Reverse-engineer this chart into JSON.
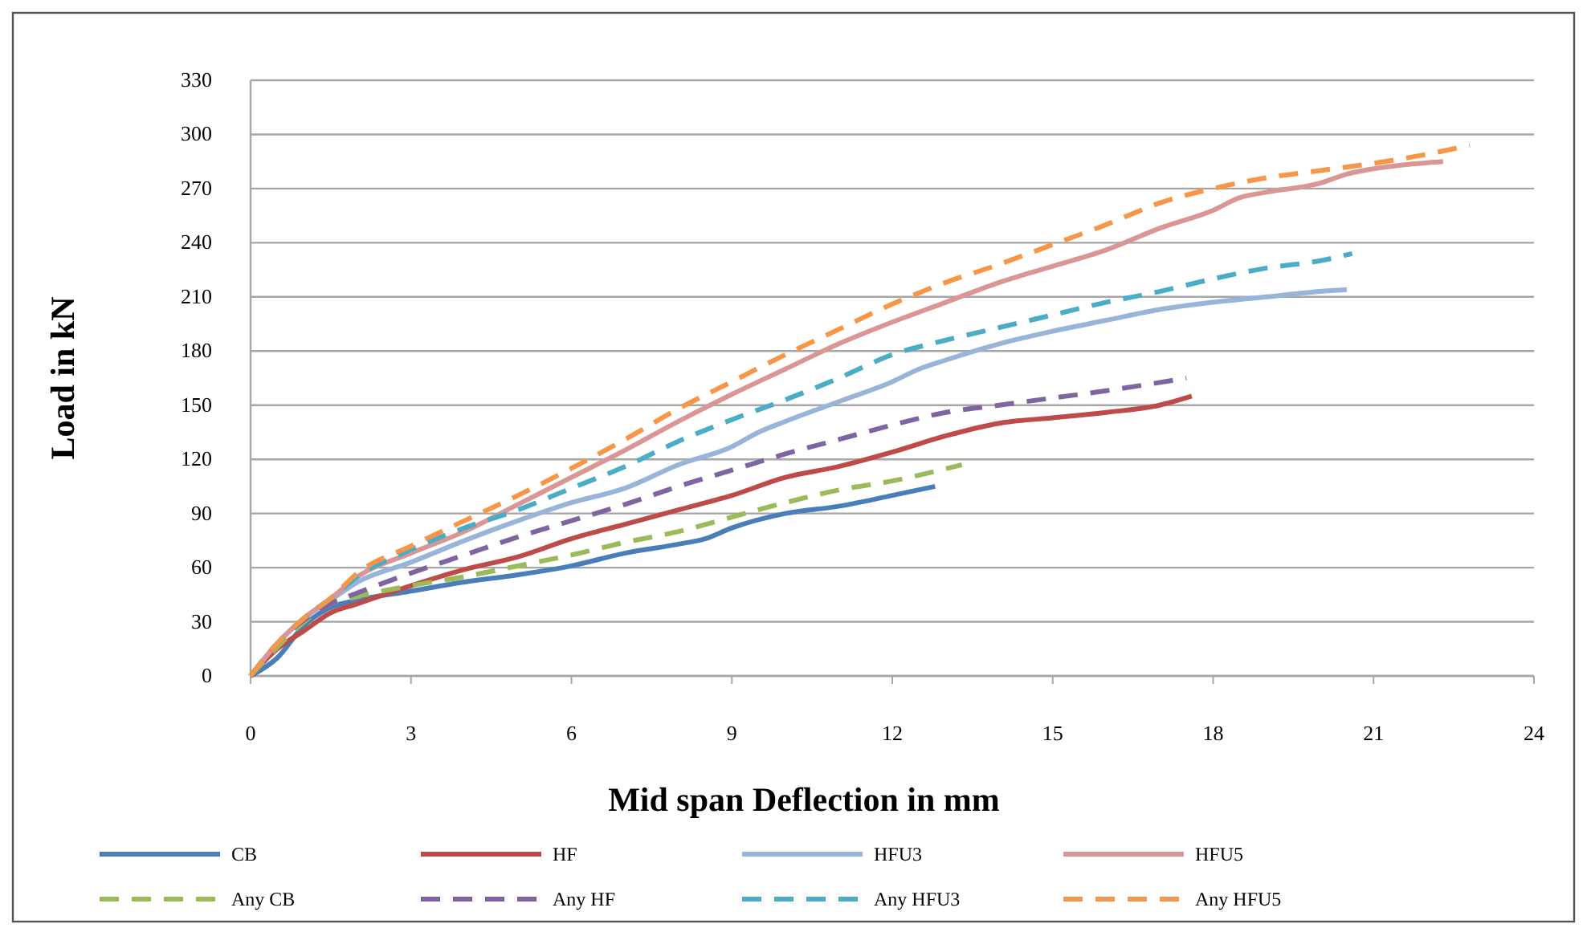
{
  "chart_data": {
    "type": "line",
    "xlabel": "Mid span Deflection in mm",
    "ylabel": "Load in kN",
    "xlim": [
      0,
      24
    ],
    "xticks": [
      0,
      3,
      6,
      9,
      12,
      15,
      18,
      21,
      24
    ],
    "ylim": [
      0,
      330
    ],
    "yticks": [
      0,
      30,
      60,
      90,
      120,
      150,
      180,
      210,
      240,
      270,
      300,
      330
    ],
    "grid": "y",
    "legend": "bottom",
    "series": [
      {
        "name": "CB",
        "color": "#4a7ebb",
        "line_style": "solid",
        "x": [
          0,
          0.5,
          1,
          1.5,
          2,
          3,
          4,
          5,
          6,
          7,
          8,
          8.5,
          9,
          10,
          11,
          12,
          12.8
        ],
        "values": [
          0,
          10,
          28,
          38,
          42,
          47,
          52,
          56,
          61,
          68,
          73,
          76,
          82,
          90,
          94,
          100,
          105
        ]
      },
      {
        "name": "HF",
        "color": "#be4b48",
        "line_style": "solid",
        "x": [
          0,
          0.5,
          1,
          1.5,
          2,
          3,
          4,
          5,
          6,
          7,
          8,
          9,
          10,
          11,
          12,
          13,
          14,
          15,
          16,
          17,
          17.6
        ],
        "values": [
          0,
          15,
          25,
          35,
          40,
          50,
          59,
          66,
          76,
          84,
          92,
          100,
          110,
          116,
          124,
          133,
          140,
          143,
          146,
          150,
          155
        ]
      },
      {
        "name": "HFU3",
        "color": "#98b4d9",
        "line_style": "solid",
        "x": [
          0,
          0.5,
          1,
          1.5,
          2,
          3,
          4,
          5,
          6,
          7,
          8,
          9,
          9.5,
          10,
          11,
          12,
          12.5,
          13,
          14,
          15,
          16,
          17,
          18,
          19,
          20,
          20.5
        ],
        "values": [
          0,
          18,
          32,
          42,
          52,
          63,
          75,
          86,
          96,
          104,
          117,
          127,
          135,
          141,
          152,
          163,
          170,
          175,
          184,
          191,
          197,
          203,
          207,
          210,
          213,
          214
        ]
      },
      {
        "name": "HFU5",
        "color": "#d99694",
        "line_style": "solid",
        "x": [
          0,
          0.5,
          1,
          1.5,
          2,
          3,
          4,
          5,
          6,
          7,
          8,
          9,
          10,
          11,
          12,
          13,
          14,
          15,
          16,
          17,
          18,
          18.5,
          19,
          20,
          20.5,
          21,
          22.3
        ],
        "values": [
          0,
          18,
          32,
          43,
          55,
          68,
          80,
          95,
          110,
          125,
          141,
          156,
          170,
          184,
          196,
          207,
          218,
          227,
          236,
          248,
          258,
          265,
          268,
          273,
          278,
          281,
          285
        ]
      },
      {
        "name": "Any CB",
        "color": "#9bbb59",
        "line_style": "dashed",
        "x": [
          0,
          0.5,
          1,
          1.5,
          2,
          3,
          4,
          5,
          6,
          7,
          8,
          9,
          10,
          11,
          12,
          13.3
        ],
        "values": [
          0,
          16,
          30,
          40,
          44,
          50,
          55,
          61,
          67,
          74,
          80,
          88,
          96,
          103,
          108,
          117
        ]
      },
      {
        "name": "Any HF",
        "color": "#8064a2",
        "line_style": "dashed",
        "x": [
          0,
          0.5,
          1,
          1.5,
          2,
          3,
          4,
          5,
          6,
          7,
          8,
          9,
          10,
          11,
          12,
          13,
          14,
          15,
          16,
          17.5
        ],
        "values": [
          0,
          18,
          31,
          40,
          46,
          57,
          67,
          77,
          86,
          95,
          105,
          114,
          123,
          131,
          139,
          146,
          150,
          154,
          158,
          165
        ]
      },
      {
        "name": "Any HFU3",
        "color": "#4bacc6",
        "line_style": "dashed",
        "x": [
          0,
          0.5,
          1,
          1.5,
          2,
          3,
          4,
          5,
          6,
          7,
          8,
          9,
          10,
          11,
          12,
          13,
          14,
          15,
          16,
          17,
          18,
          19,
          20,
          20.6
        ],
        "values": [
          0,
          18,
          32,
          43,
          55,
          70,
          82,
          92,
          104,
          116,
          130,
          142,
          153,
          165,
          178,
          186,
          193,
          200,
          207,
          213,
          220,
          226,
          230,
          234
        ]
      },
      {
        "name": "Any HFU5",
        "color": "#f79646",
        "line_style": "dashed",
        "x": [
          0,
          0.5,
          1,
          1.5,
          2,
          3,
          4,
          5,
          6,
          7,
          8,
          9,
          10,
          11,
          12,
          13,
          14,
          15,
          16,
          17,
          18,
          19,
          20,
          21,
          22,
          22.8
        ],
        "values": [
          0,
          18,
          32,
          43,
          57,
          72,
          86,
          100,
          115,
          131,
          148,
          163,
          178,
          192,
          206,
          218,
          228,
          239,
          250,
          262,
          270,
          276,
          280,
          284,
          289,
          294
        ]
      }
    ]
  }
}
